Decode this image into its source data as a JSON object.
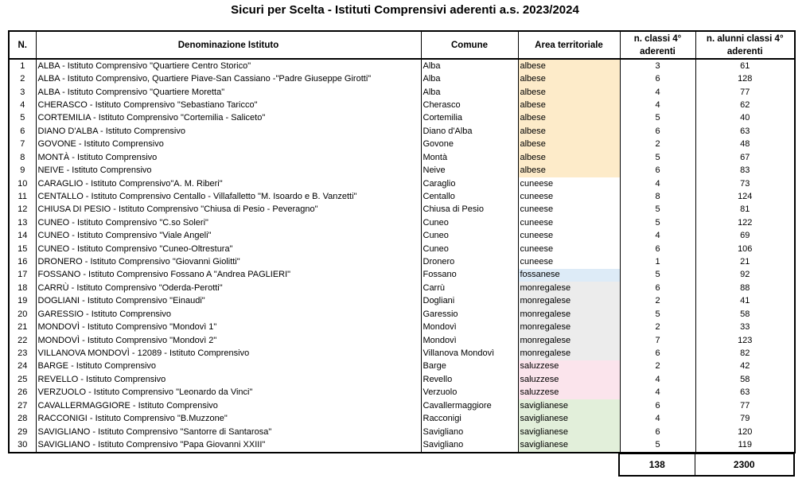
{
  "title": "Sicuri per Scelta - Istituti Comprensivi aderenti a.s. 2023/2024",
  "table": {
    "headers": [
      "N.",
      "Denominazione Istituto",
      "Comune",
      "Area territoriale",
      "n. classi 4° aderenti",
      "n. alunni classi 4° aderenti"
    ],
    "rows": [
      [
        1,
        "ALBA - Istituto Comprensivo \"Quartiere Centro Storico\"",
        "Alba",
        "albese",
        3,
        61
      ],
      [
        2,
        "ALBA - Istituto Comprensivo, Quartiere Piave-San Cassiano -\"Padre Giuseppe Girotti\"",
        "Alba",
        "albese",
        6,
        128
      ],
      [
        3,
        "ALBA - Istituto Comprensivo \"Quartiere Moretta\"",
        "Alba",
        "albese",
        4,
        77
      ],
      [
        4,
        "CHERASCO - Istituto Comprensivo \"Sebastiano Taricco\"",
        "Cherasco",
        "albese",
        4,
        62
      ],
      [
        5,
        "CORTEMILIA - Istituto Comprensivo \"Cortemilia - Saliceto\"",
        "Cortemilia",
        "albese",
        5,
        40
      ],
      [
        6,
        "DIANO D'ALBA - Istituto Comprensivo",
        "Diano d'Alba",
        "albese",
        6,
        63
      ],
      [
        7,
        "GOVONE - Istituto Comprensivo",
        "Govone",
        "albese",
        2,
        48
      ],
      [
        8,
        "MONTÀ - Istituto Comprensivo",
        "Montà",
        "albese",
        5,
        67
      ],
      [
        9,
        "NEIVE - Istituto Comprensivo",
        "Neive",
        "albese",
        6,
        83
      ],
      [
        10,
        "CARAGLIO - Istituto Comprensivo\"A. M. Riberi\"",
        "Caraglio",
        "cuneese",
        4,
        73
      ],
      [
        11,
        "CENTALLO - Istituto Comprensivo Centallo - Villafalletto \"M. Isoardo e B. Vanzetti\"",
        "Centallo",
        "cuneese",
        8,
        124
      ],
      [
        12,
        "CHIUSA DI PESIO - Istituto Comprensivo \"Chiusa di Pesio - Peveragno\"",
        "Chiusa di Pesio",
        "cuneese",
        5,
        81
      ],
      [
        13,
        "CUNEO - Istituto Comprensivo \"C.so Soleri\"",
        "Cuneo",
        "cuneese",
        5,
        122
      ],
      [
        14,
        "CUNEO - Istituto Comprensivo \"Viale Angeli\"",
        "Cuneo",
        "cuneese",
        4,
        69
      ],
      [
        15,
        "CUNEO - Istituto Comprensivo \"Cuneo-Oltrestura\"",
        "Cuneo",
        "cuneese",
        6,
        106
      ],
      [
        16,
        "DRONERO - Istituto Comprensivo \"Giovanni Giolitti\"",
        "Dronero",
        "cuneese",
        1,
        21
      ],
      [
        17,
        "FOSSANO - Istituto Comprensivo Fossano A \"Andrea PAGLIERI\"",
        "Fossano",
        "fossanese",
        5,
        92
      ],
      [
        18,
        "CARRÙ - Istituto Comprensivo \"Oderda-Perotti\"",
        "Carrù",
        "monregalese",
        6,
        88
      ],
      [
        19,
        "DOGLIANI - Istituto Comprensivo \"Einaudi\"",
        "Dogliani",
        "monregalese",
        2,
        41
      ],
      [
        20,
        "GARESSIO - Istituto Comprensivo",
        "Garessio",
        "monregalese",
        5,
        58
      ],
      [
        21,
        "MONDOVÌ - Istituto Comprensivo \"Mondovì 1\"",
        "Mondovì",
        "monregalese",
        2,
        33
      ],
      [
        22,
        "MONDOVÌ - Istituto Comprensivo \"Mondovì 2\"",
        "Mondovì",
        "monregalese",
        7,
        123
      ],
      [
        23,
        "VILLANOVA MONDOVÌ - 12089 - Istituto Comprensivo",
        "Villanova Mondovì",
        "monregalese",
        6,
        82
      ],
      [
        24,
        "BARGE - Istituto Comprensivo",
        "Barge",
        "saluzzese",
        2,
        42
      ],
      [
        25,
        "REVELLO - Istituto Comprensivo",
        "Revello",
        "saluzzese",
        4,
        58
      ],
      [
        26,
        "VERZUOLO - Istituto Comprensivo \"Leonardo da Vinci\"",
        "Verzuolo",
        "saluzzese",
        4,
        63
      ],
      [
        27,
        "CAVALLERMAGGIORE - Istituto Comprensivo",
        "Cavallermaggiore",
        "saviglianese",
        6,
        77
      ],
      [
        28,
        "RACCONIGI - Istituto Comprensivo \"B.Muzzone\"",
        "Racconigi",
        "saviglianese",
        4,
        79
      ],
      [
        29,
        "SAVIGLIANO - Istituto Comprensivo \"Santorre di Santarosa\"",
        "Savigliano",
        "saviglianese",
        6,
        120
      ],
      [
        30,
        "SAVIGLIANO - Istituto Comprensivo \"Papa Giovanni XXIII\"",
        "Savigliano",
        "saviglianese",
        5,
        119
      ]
    ],
    "area_colors": [
      "#fdebc9",
      "#fdebc9",
      "#fdebc9",
      "#fdebc9",
      "#fdebc9",
      "#fdebc9",
      "#fdebc9",
      "#fdebc9",
      "#fdebc9",
      "#ffffff",
      "#ffffff",
      "#ffffff",
      "#ffffff",
      "#ffffff",
      "#ffffff",
      "#ffffff",
      "#ddebf7",
      "#ececec",
      "#ececec",
      "#ececec",
      "#ececec",
      "#ececec",
      "#ececec",
      "#fbe4ec",
      "#fbe4ec",
      "#fbe4ec",
      "#e2efda",
      "#e2efda",
      "#e2efda",
      "#e2efda"
    ]
  },
  "totals": {
    "classi": 138,
    "alunni": 2300
  }
}
